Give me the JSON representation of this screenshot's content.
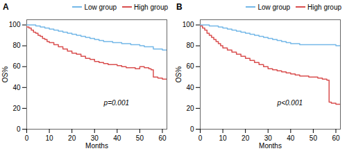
{
  "chart_data": [
    {
      "type": "step",
      "title": "A",
      "xlabel": "Months",
      "ylabel": "OS%",
      "annotations": [
        "p=0.001"
      ],
      "series": [
        {
          "name": "Low group",
          "color": "#74b8e8",
          "x": [
            0,
            2,
            4,
            6,
            8,
            10,
            12,
            14,
            16,
            18,
            20,
            22,
            24,
            26,
            28,
            30,
            32,
            34,
            36,
            38,
            40,
            42,
            44,
            46,
            48,
            50,
            52,
            54,
            56,
            58,
            60,
            62
          ],
          "values": [
            100,
            100,
            99,
            98,
            97,
            96,
            95,
            94,
            93,
            92,
            91,
            90,
            89,
            88,
            87,
            86,
            85,
            84,
            84,
            83,
            83,
            82,
            82,
            81,
            81,
            80,
            79,
            79,
            77,
            77,
            76,
            76
          ]
        },
        {
          "name": "High group",
          "color": "#d94f4f",
          "x": [
            0,
            1,
            2,
            3,
            4,
            5,
            6,
            7,
            8,
            9,
            10,
            12,
            14,
            16,
            18,
            20,
            22,
            24,
            26,
            28,
            30,
            32,
            34,
            36,
            38,
            40,
            42,
            44,
            46,
            48,
            50,
            52,
            54,
            55,
            56,
            58,
            60,
            62
          ],
          "values": [
            98,
            97,
            95,
            93,
            92,
            90,
            89,
            87,
            86,
            84,
            83,
            81,
            79,
            77,
            75,
            73,
            72,
            70,
            68,
            67,
            65,
            64,
            63,
            62,
            62,
            61,
            60,
            59,
            59,
            58,
            60,
            59,
            58,
            57,
            50,
            49,
            48,
            48
          ]
        }
      ],
      "xlim": [
        0,
        62
      ],
      "ylim": [
        0,
        105
      ],
      "xticks": [
        0,
        10,
        20,
        30,
        40,
        50,
        60
      ],
      "yticks": [
        0,
        20,
        40,
        60,
        80,
        100
      ],
      "grid": false,
      "legend": "upper right"
    },
    {
      "type": "step",
      "title": "B",
      "xlabel": "Months",
      "ylabel": "OS%",
      "annotations": [
        "p<0.001"
      ],
      "series": [
        {
          "name": "Low group",
          "color": "#74b8e8",
          "x": [
            0,
            2,
            4,
            6,
            8,
            10,
            12,
            14,
            16,
            18,
            20,
            22,
            24,
            26,
            28,
            30,
            32,
            34,
            36,
            38,
            40,
            42,
            44,
            46,
            48,
            50,
            52,
            54,
            56,
            58,
            60,
            62
          ],
          "values": [
            100,
            100,
            99,
            99,
            98,
            97,
            96,
            95,
            94,
            93,
            92,
            91,
            90,
            89,
            88,
            87,
            86,
            85,
            84,
            83,
            82,
            82,
            81,
            81,
            81,
            81,
            81,
            81,
            81,
            81,
            80,
            80
          ]
        },
        {
          "name": "High group",
          "color": "#d94f4f",
          "x": [
            0,
            1,
            2,
            3,
            4,
            5,
            6,
            7,
            8,
            9,
            10,
            12,
            14,
            16,
            18,
            20,
            22,
            24,
            26,
            28,
            30,
            32,
            34,
            36,
            38,
            40,
            42,
            44,
            46,
            48,
            50,
            52,
            54,
            56,
            57,
            58,
            60,
            62
          ],
          "values": [
            99,
            97,
            95,
            92,
            90,
            88,
            86,
            84,
            82,
            80,
            78,
            76,
            74,
            72,
            70,
            68,
            66,
            64,
            62,
            60,
            58,
            57,
            56,
            55,
            54,
            53,
            52,
            51,
            51,
            50,
            50,
            49,
            48,
            47,
            26,
            25,
            24,
            24
          ]
        }
      ],
      "xlim": [
        0,
        62
      ],
      "ylim": [
        0,
        105
      ],
      "xticks": [
        0,
        10,
        20,
        30,
        40,
        50,
        60
      ],
      "yticks": [
        0,
        20,
        40,
        60,
        80,
        100
      ],
      "grid": false,
      "legend": "upper right"
    }
  ]
}
